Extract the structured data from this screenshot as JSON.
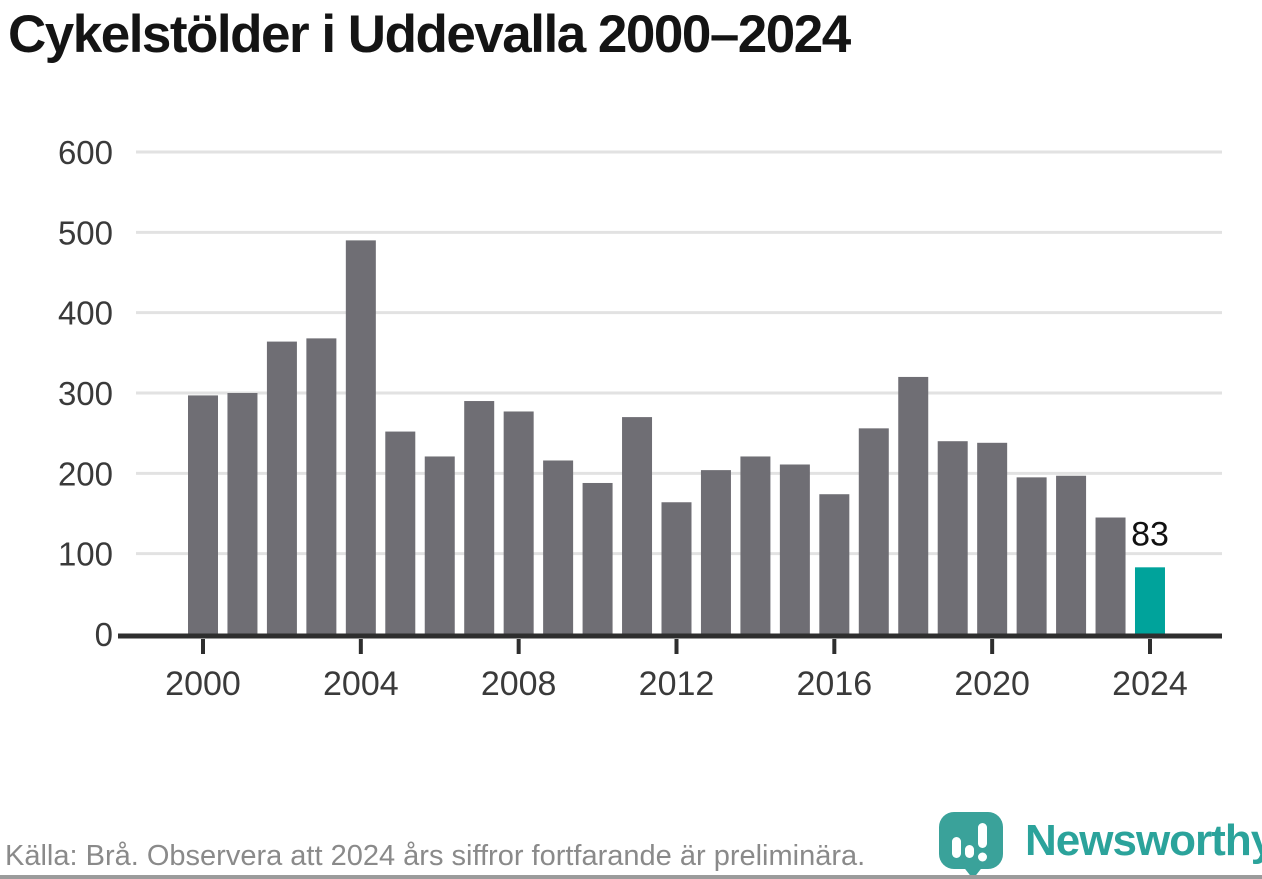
{
  "title": "Cykelstölder i Uddevalla 2000–2024",
  "chart_data": {
    "type": "bar",
    "title": "Cykelstölder i Uddevalla 2000–2024",
    "xlabel": "",
    "ylabel": "",
    "categories": [
      2000,
      2001,
      2002,
      2003,
      2004,
      2005,
      2006,
      2007,
      2008,
      2009,
      2010,
      2011,
      2012,
      2013,
      2014,
      2015,
      2016,
      2017,
      2018,
      2019,
      2020,
      2021,
      2022,
      2023,
      2024
    ],
    "values": [
      297,
      300,
      364,
      368,
      490,
      252,
      221,
      290,
      277,
      216,
      188,
      270,
      164,
      204,
      221,
      211,
      174,
      256,
      320,
      240,
      238,
      195,
      197,
      145,
      83
    ],
    "ylim": [
      0,
      600
    ],
    "yticks": [
      0,
      100,
      200,
      300,
      400,
      500,
      600
    ],
    "xticks": [
      2000,
      2004,
      2008,
      2012,
      2016,
      2020,
      2024
    ],
    "grid": true,
    "legend": "none",
    "bar_color": "#6f6e74",
    "highlight_year": 2024,
    "highlight_color": "#00a39b",
    "annotation": {
      "year": 2024,
      "label": "83",
      "color": "#111111"
    },
    "axis_color": "#2e2e2e",
    "gridline_color": "#e2e2e2",
    "tick_label_color": "#3a3a3a"
  },
  "footer": {
    "source_note": "Källa: Brå. Observera att 2024 års siffror fortfarande är preliminära."
  },
  "branding": {
    "logo_text": "Newsworthy",
    "logo_color": "#2ba39b",
    "icon_name": "newsworthy-speech-bubble-chart-icon",
    "icon_color": "#3aa29a"
  }
}
